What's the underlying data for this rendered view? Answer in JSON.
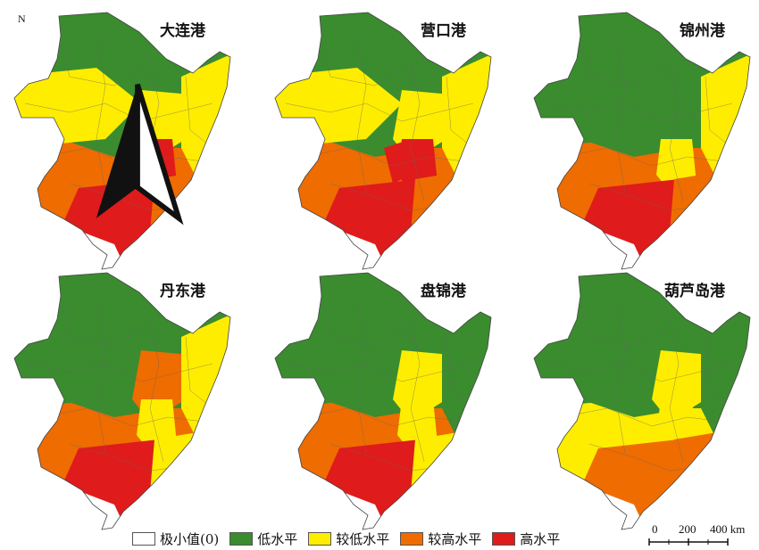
{
  "panels": [
    {
      "title": "大连港",
      "lower": "red",
      "coastal": "orange",
      "center": "yellow",
      "northwest": "yellow",
      "east": "yellow",
      "band": "orange",
      "corridor": "red",
      "hiCorridor": true
    },
    {
      "title": "营口港",
      "lower": "red",
      "coastal": "orange",
      "center": "yellow",
      "northwest": "yellow",
      "east": "yellow",
      "band": "orange",
      "corridor": "red",
      "hiCorridor": true
    },
    {
      "title": "锦州港",
      "lower": "red",
      "coastal": "orange",
      "center": "green",
      "northwest": "green",
      "east": "yellow",
      "band": "orange",
      "corridor": "yellow",
      "hiCorridor": false
    },
    {
      "title": "丹东港",
      "lower": "red",
      "coastal": "yellow",
      "center": "orange",
      "northwest": "green",
      "east": "yellow",
      "band": "orange",
      "corridor": "yellow",
      "hiCorridor": false
    },
    {
      "title": "盘锦港",
      "lower": "red",
      "coastal": "yellow",
      "center": "yellow",
      "northwest": "green",
      "east": "green",
      "band": "orange",
      "corridor": "yellow",
      "hiCorridor": false
    },
    {
      "title": "葫芦岛港",
      "lower": "orange",
      "coastal": "orange",
      "center": "yellow",
      "northwest": "green",
      "east": "green",
      "band": "yellow",
      "corridor": "yellow",
      "hiCorridor": false
    }
  ],
  "north_label": "N",
  "legend": [
    {
      "label": "极小值(0)",
      "color": "#ffffff"
    },
    {
      "label": "低水平",
      "color": "#3a8c2f"
    },
    {
      "label": "较低水平",
      "color": "#ffed00"
    },
    {
      "label": "较高水平",
      "color": "#ef6c00"
    },
    {
      "label": "高水平",
      "color": "#e01b1b"
    }
  ],
  "scale": {
    "tick0": "0",
    "tick1": "200",
    "tick2": "400 km"
  }
}
